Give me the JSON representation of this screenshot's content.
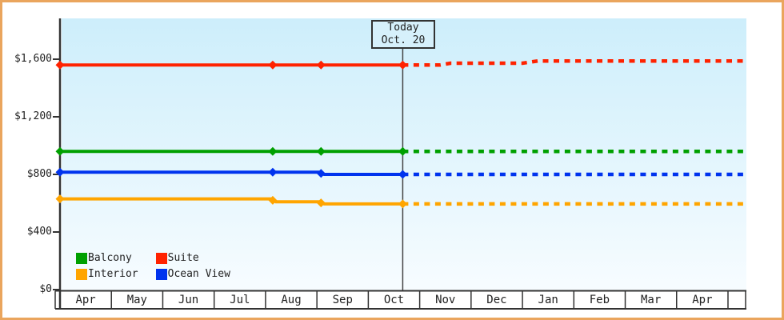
{
  "frame": {
    "border_color": "#eaa55d",
    "plot_gradient_top": "#cdeefb",
    "plot_gradient_bottom": "#f7fcff",
    "axis_color": "#333333",
    "text_color": "#222222"
  },
  "chart_data": {
    "type": "line",
    "title": "",
    "xlabel": "",
    "ylabel": "",
    "ylim": [
      0,
      1880
    ],
    "grid": false,
    "legend_position": "bottom-left-inside",
    "x_months": [
      "Apr",
      "May",
      "Jun",
      "Jul",
      "Aug",
      "Sep",
      "Oct",
      "Nov",
      "Dec",
      "Jan",
      "Feb",
      "Mar",
      "Apr"
    ],
    "x_axis_end_month_index": 13.37,
    "y_ticks": [
      {
        "label": "$1,600",
        "value": 1600
      },
      {
        "label": "$1,200",
        "value": 1200
      },
      {
        "label": "$800",
        "value": 800
      },
      {
        "label": "$400",
        "value": 400
      },
      {
        "label": "$0",
        "value": 0
      }
    ],
    "today": {
      "month_index": 6.67,
      "label_line1": "Today",
      "label_line2": "Oct. 20"
    },
    "series": [
      {
        "name": "Suite",
        "color": "#ff2200",
        "solid": [
          [
            0,
            1560
          ],
          [
            6.67,
            1560
          ]
        ],
        "forecast": [
          [
            6.67,
            1560
          ],
          [
            7.4,
            1560
          ],
          [
            7.6,
            1572
          ],
          [
            9.0,
            1572
          ],
          [
            9.3,
            1588
          ],
          [
            13.33,
            1588
          ]
        ],
        "markers": [
          [
            0,
            1560
          ],
          [
            4.14,
            1560
          ],
          [
            5.08,
            1560
          ],
          [
            6.67,
            1560
          ]
        ]
      },
      {
        "name": "Balcony",
        "color": "#00a000",
        "solid": [
          [
            0,
            960
          ],
          [
            6.67,
            960
          ]
        ],
        "forecast": [
          [
            6.67,
            960
          ],
          [
            13.33,
            960
          ]
        ],
        "markers": [
          [
            0,
            960
          ],
          [
            4.14,
            960
          ],
          [
            5.08,
            960
          ],
          [
            6.67,
            960
          ]
        ]
      },
      {
        "name": "Ocean View",
        "color": "#0033ee",
        "solid": [
          [
            0,
            815
          ],
          [
            5.04,
            815
          ],
          [
            5.14,
            800
          ],
          [
            6.67,
            800
          ]
        ],
        "forecast": [
          [
            6.67,
            800
          ],
          [
            13.33,
            800
          ]
        ],
        "markers": [
          [
            0,
            815
          ],
          [
            4.14,
            815
          ],
          [
            5.08,
            807
          ],
          [
            6.67,
            800
          ]
        ]
      },
      {
        "name": "Interior",
        "color": "#ffa500",
        "solid": [
          [
            0,
            630
          ],
          [
            4.1,
            630
          ],
          [
            4.2,
            610
          ],
          [
            5.04,
            610
          ],
          [
            5.14,
            595
          ],
          [
            6.67,
            595
          ]
        ],
        "forecast": [
          [
            6.67,
            595
          ],
          [
            13.33,
            595
          ]
        ],
        "markers": [
          [
            0,
            630
          ],
          [
            4.14,
            620
          ],
          [
            5.08,
            602
          ],
          [
            6.67,
            595
          ]
        ]
      }
    ],
    "legend": {
      "items": [
        {
          "label": "Balcony",
          "color": "#00a000"
        },
        {
          "label": "Suite",
          "color": "#ff2200"
        },
        {
          "label": "Interior",
          "color": "#ffa500"
        },
        {
          "label": "Ocean View",
          "color": "#0033ee"
        }
      ]
    }
  }
}
